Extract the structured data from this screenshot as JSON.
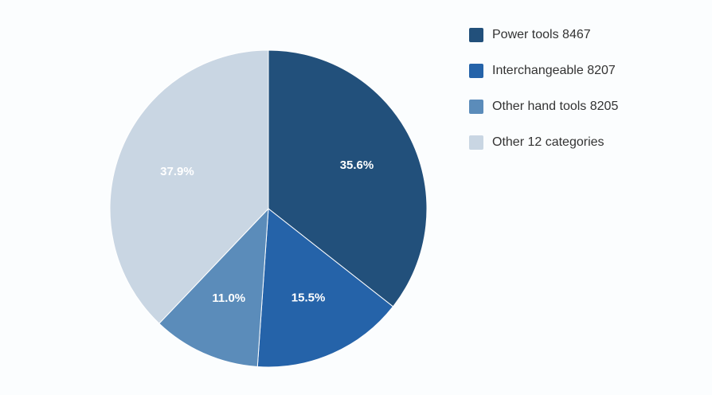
{
  "chart_data": {
    "type": "pie",
    "categories": [
      "Power tools 8467",
      "Interchangeable 8207",
      "Other hand tools 8205",
      "Other 12 categories"
    ],
    "values": [
      35.6,
      15.5,
      11.0,
      37.9
    ],
    "value_labels": [
      "35.6%",
      "15.5%",
      "11.0%",
      "37.9%"
    ],
    "colors": [
      "#22507b",
      "#2563a9",
      "#5b8cba",
      "#c9d6e3"
    ],
    "legend": "right"
  }
}
